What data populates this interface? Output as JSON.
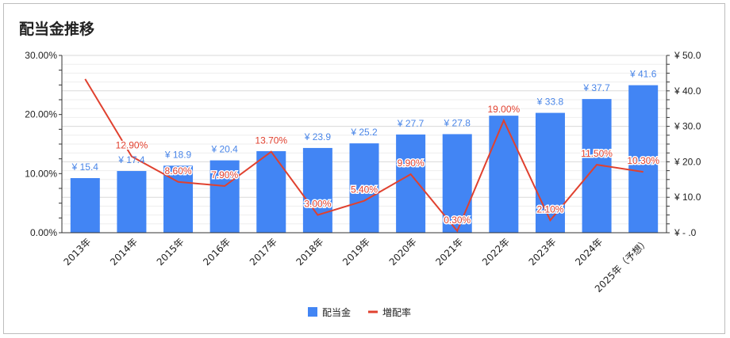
{
  "chart_data": {
    "type": "bar",
    "title": "配当金推移",
    "categories": [
      "2013年",
      "2014年",
      "2015年",
      "2016年",
      "2017年",
      "2018年",
      "2019年",
      "2020年",
      "2021年",
      "2022年",
      "2023年",
      "2024年",
      "2025年（予想）"
    ],
    "series": [
      {
        "name": "配当金",
        "type": "bar",
        "axis": "right",
        "color": "#4285f4",
        "values": [
          15.4,
          17.4,
          18.9,
          20.4,
          23.0,
          23.9,
          25.2,
          27.7,
          27.8,
          33.0,
          33.8,
          37.7,
          41.6
        ],
        "labels": [
          "¥ 15.4",
          "¥ 17.4",
          "¥ 18.9",
          "¥ 20.4",
          "",
          "¥ 23.9",
          "¥ 25.2",
          "¥ 27.7",
          "¥ 27.8",
          "",
          "¥ 33.8",
          "¥ 37.7",
          "¥ 41.6"
        ]
      },
      {
        "name": "増配率",
        "type": "line",
        "axis": "left",
        "color": "#e0412f",
        "values": [
          26.0,
          12.9,
          8.6,
          7.9,
          13.7,
          3.0,
          5.4,
          9.9,
          0.3,
          19.0,
          2.1,
          11.5,
          10.3
        ],
        "labels": [
          "",
          "12.90%",
          "8.60%",
          "7.90%",
          "13.70%",
          "3.00%",
          "5.40%",
          "9.90%",
          "0.30%",
          "19.00%",
          "2.10%",
          "11.50%",
          "10.30%"
        ]
      }
    ],
    "y_left": {
      "range": [
        0,
        30
      ],
      "ticks": [
        "0.00%",
        "10.00%",
        "20.00%",
        "30.00%"
      ]
    },
    "y_right": {
      "range": [
        0,
        50
      ],
      "ticks": [
        "¥ -  .0",
        "¥ 10.0",
        "¥ 20.0",
        "¥ 30.0",
        "¥ 40.0",
        "¥ 50.0"
      ]
    },
    "grid": true,
    "legend": "bottom"
  }
}
